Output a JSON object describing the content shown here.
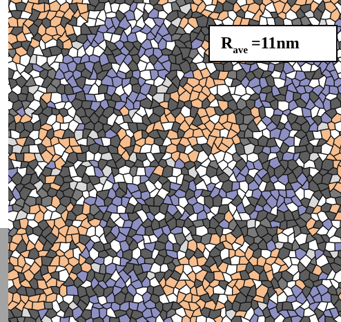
{
  "label": {
    "main": "R",
    "subscript": "ave",
    "rest": "=11nm"
  }
}
